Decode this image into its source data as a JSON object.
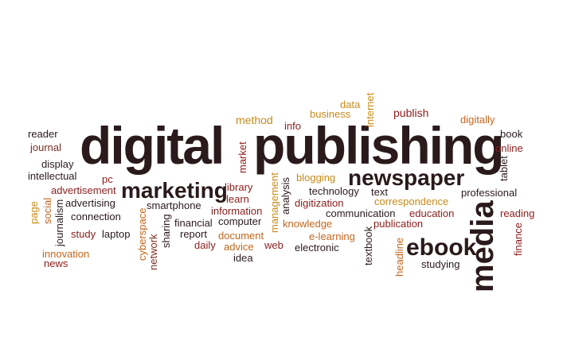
{
  "words": {
    "digital": "digital",
    "publishing": "publishing",
    "newspaper": "newspaper",
    "marketing": "marketing",
    "ebook": "ebook",
    "media": "media",
    "reader": "reader",
    "journal": "journal",
    "display": "display",
    "intellectual": "intellectual",
    "pc": "pc",
    "advertisement": "advertisement",
    "advertising": "advertising",
    "page": "page",
    "social": "social",
    "journalism": "journalism",
    "connection": "connection",
    "study": "study",
    "laptop": "laptop",
    "innovation": "innovation",
    "news": "news",
    "cyberspace": "cyberspace",
    "network": "network",
    "sharing": "sharing",
    "smartphone": "smartphone",
    "financial": "financial",
    "report": "report",
    "daily": "daily",
    "library": "library",
    "learn": "learn",
    "information": "information",
    "computer": "computer",
    "document": "document",
    "advice": "advice",
    "idea": "idea",
    "market": "market",
    "method": "method",
    "management": "management",
    "analysis": "analysis",
    "web": "web",
    "info": "info",
    "business": "business",
    "data": "data",
    "internet": "internet",
    "blogging": "blogging",
    "technology": "technology",
    "digitization": "digitization",
    "knowledge": "knowledge",
    "electronic": "electronic",
    "e_learning": "e-learning",
    "communication": "communication",
    "text": "text",
    "correspondence": "correspondence",
    "education": "education",
    "publication": "publication",
    "textbook": "textbook",
    "headline": "headline",
    "studying": "studying",
    "publish": "publish",
    "digitally": "digitally",
    "book": "book",
    "online": "online",
    "tablet": "tablet",
    "professional": "professional",
    "reading": "reading",
    "finance": "finance"
  },
  "palette": {
    "dark": "#2a1a1b",
    "red": "#8c1d1a",
    "brown": "#7a2f22",
    "gold": "#c98a1b",
    "orange": "#c4661c",
    "maroon": "#6b1a20",
    "background": "#ffffff"
  }
}
